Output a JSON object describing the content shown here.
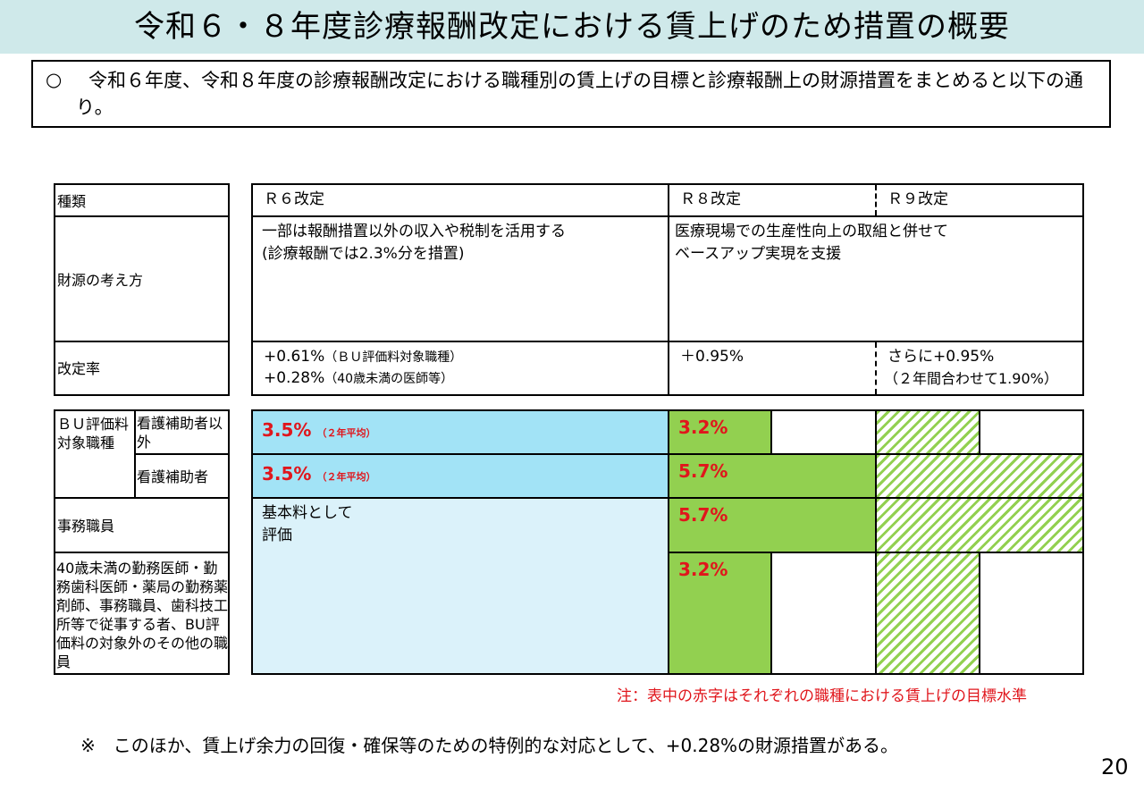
{
  "title": "令和６・８年度診療報酬改定における賃上げのため措置の概要",
  "intro": {
    "mark": "○",
    "text": "令和６年度、令和８年度の診療報酬改定における職種別の賃上げの目標と診療報酬上の財源措置をまとめると以下の通り。"
  },
  "table": {
    "row_labels": {
      "type": "種類",
      "funding": "財源の考え方",
      "rate": "改定率",
      "bu_group": "ＢＵ評価料対象職種",
      "bu_non_nurse_aide": "看護補助者以外",
      "bu_nurse_aide": "看護補助者",
      "clerical": "事務職員",
      "young_doctors": "40歳未満の勤務医師・勤務歯科医師・薬局の勤務薬剤師、事務職員、歯科技工所等で従事する者、BU評価料の対象外のその他の職員"
    },
    "headers": {
      "r6": "Ｒ６改定",
      "r8": "Ｒ８改定",
      "r9": "Ｒ９改定"
    },
    "funding": {
      "r6_line1": "一部は報酬措置以外の収入や税制を活用する",
      "r6_line2": "(診療報酬では2.3%分を措置)",
      "r8_line1": "医療現場での生産性向上の取組と併せて",
      "r8_line2": "ベースアップ実現を支援"
    },
    "rates": {
      "r6_line1_main": "+0.61%",
      "r6_line1_note": "（ＢＵ評価料対象職種）",
      "r6_line2_main": "+0.28%",
      "r6_line2_note": "（40歳未満の医師等）",
      "r8": "＋0.95%",
      "r9_line1": "さらに+0.95%",
      "r9_line2": "（２年間合わせて1.90%）"
    },
    "targets": {
      "r6_non_nurse_aide": "3.5%",
      "r6_non_nurse_aide_note": "（２年平均）",
      "r6_nurse_aide": "3.5%",
      "r6_nurse_aide_note": "（２年平均）",
      "r6_base_line1": "基本料として",
      "r6_base_line2": "評価",
      "r8_non_nurse_aide": "3.2%",
      "r8_nurse_aide": "5.7%",
      "r8_clerical": "5.7%",
      "r8_young_doctors": "3.2%"
    }
  },
  "note_red": "注：表中の赤字はそれぞれの職種における賃上げの目標水準",
  "bottom_note": "※　このほか、賃上げ余力の回復・確保等のための特例的な対応として、+0.28%の財源措置がある。",
  "page_number": "20",
  "colors": {
    "title_bg": "#cfe9ea",
    "r6_target": "#a2e3f6",
    "r6_base": "#dbf2fa",
    "r8_target": "#92d050",
    "target_text": "#e0161c"
  }
}
